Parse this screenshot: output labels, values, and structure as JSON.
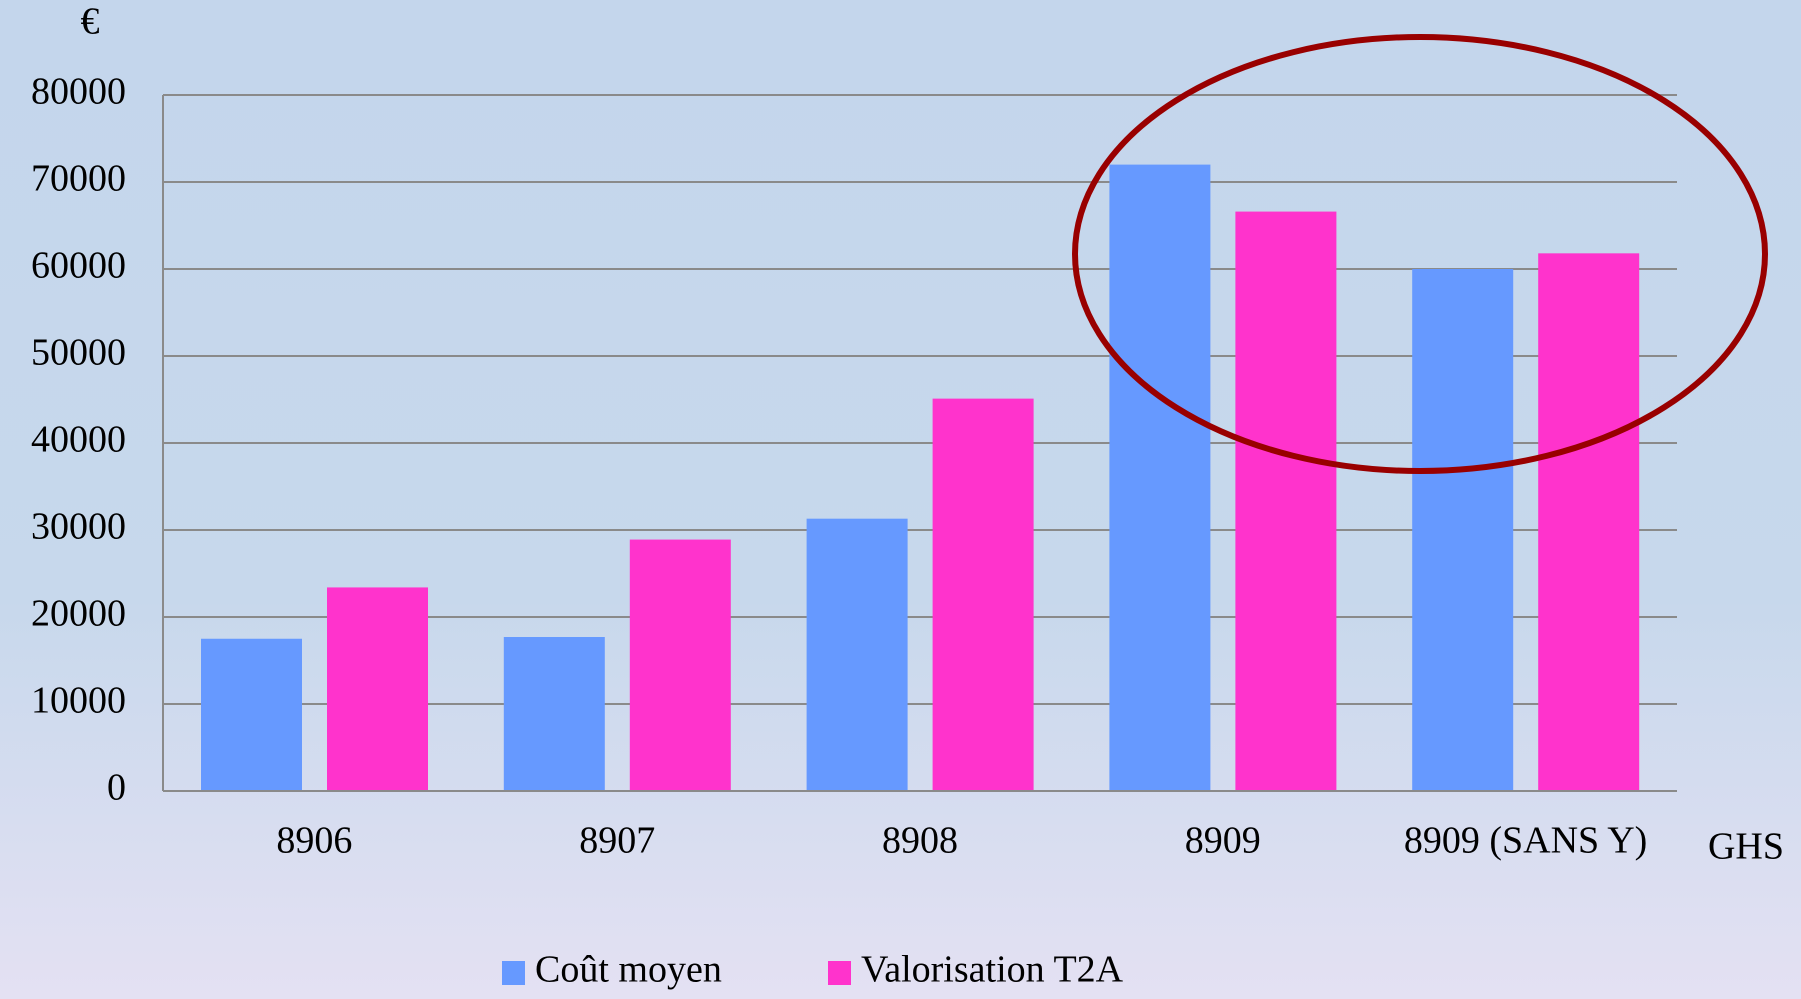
{
  "chart_data": {
    "type": "bar",
    "y_label": "€",
    "x_label": "GHS",
    "categories": [
      "8906",
      "8907",
      "8908",
      "8909",
      "8909 (SANS Y)"
    ],
    "series": [
      {
        "name": "Coût moyen",
        "color": "#6699ff",
        "values": [
          17500,
          17700,
          31300,
          72000,
          60000
        ]
      },
      {
        "name": "Valorisation T2A",
        "color": "#ff33cc",
        "values": [
          23400,
          28900,
          45100,
          66600,
          61800
        ]
      }
    ],
    "ylim": [
      0,
      80000
    ],
    "yticks": [
      0,
      10000,
      20000,
      30000,
      40000,
      50000,
      60000,
      70000,
      80000
    ],
    "grid": true
  }
}
